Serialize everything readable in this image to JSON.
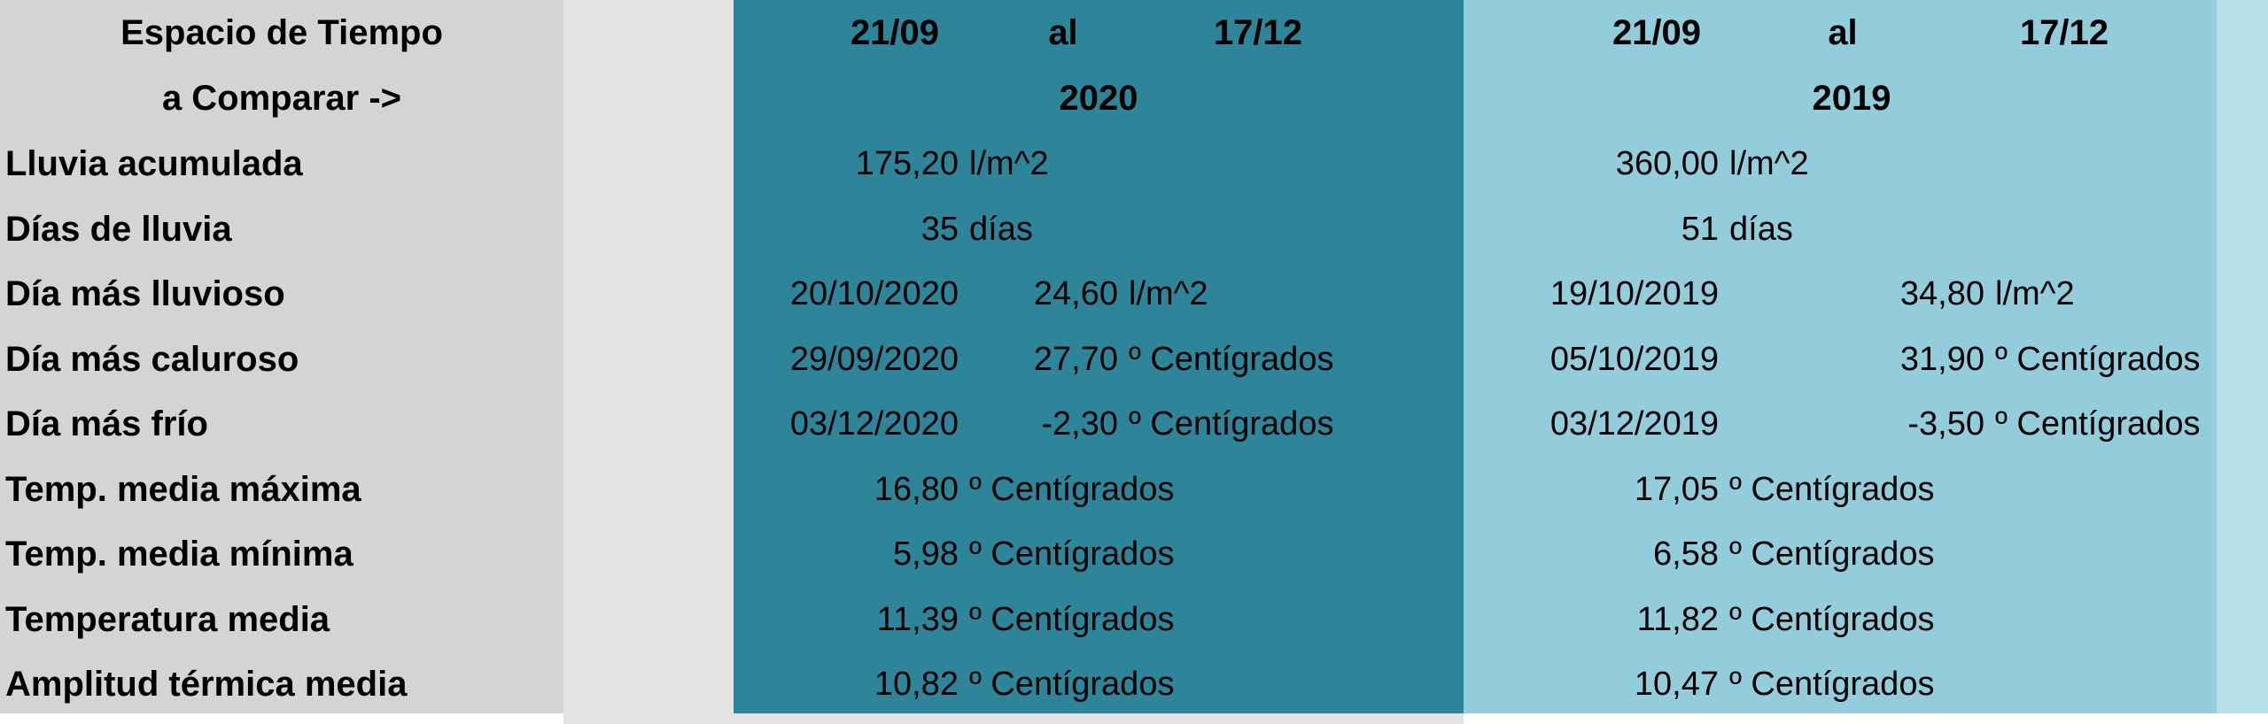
{
  "colors": {
    "label_bg": "#d4d4d4",
    "gap_bg": "#e4e4e4",
    "period1_bg": "#2e8599",
    "period2_bg": "#93cddb",
    "edge_bg": "#b8dee8"
  },
  "header": {
    "label_line1": "Espacio de Tiempo",
    "label_line2": "a Comparar ->",
    "period1": {
      "from": "21/09",
      "sep": "al",
      "to": "17/12",
      "year": "2020"
    },
    "period2": {
      "from": "21/09",
      "sep": "al",
      "to": "17/12",
      "year": "2019"
    }
  },
  "rows": [
    {
      "label": "Lluvia acumulada",
      "p1": {
        "v1": "175,20",
        "u1": "l/m^2"
      },
      "p2": {
        "v1": "360,00",
        "u1": "l/m^2"
      }
    },
    {
      "label": "Días de lluvia",
      "p1": {
        "v1": "35",
        "u1": "días"
      },
      "p2": {
        "v1": "51",
        "u1": "días"
      }
    },
    {
      "label": "Día más lluvioso",
      "p1": {
        "date": "20/10/2020",
        "v2": "24,60",
        "u2": "l/m^2"
      },
      "p2": {
        "date": "19/10/2019",
        "v2": "34,80",
        "u2": "l/m^2"
      }
    },
    {
      "label": "Día más caluroso",
      "p1": {
        "date": "29/09/2020",
        "v2": "27,70",
        "u2": "º Centígrados"
      },
      "p2": {
        "date": "05/10/2019",
        "v2": "31,90",
        "u2": "º Centígrados"
      }
    },
    {
      "label": "Día más frío",
      "p1": {
        "date": "03/12/2020",
        "v2": "-2,30",
        "u2": "º Centígrados"
      },
      "p2": {
        "date": "03/12/2019",
        "v2": "-3,50",
        "u2": "º Centígrados"
      }
    },
    {
      "label": "Temp. media máxima",
      "p1": {
        "v1": "16,80",
        "u1": "º Centígrados"
      },
      "p2": {
        "v1": "17,05",
        "u1": "º Centígrados"
      }
    },
    {
      "label": "Temp. media mínima",
      "p1": {
        "v1": "5,98",
        "u1": "º Centígrados"
      },
      "p2": {
        "v1": "6,58",
        "u1": "º Centígrados"
      }
    },
    {
      "label": "Temperatura media",
      "p1": {
        "v1": "11,39",
        "u1": "º Centígrados"
      },
      "p2": {
        "v1": "11,82",
        "u1": "º Centígrados"
      }
    },
    {
      "label": "Amplitud térmica media",
      "p1": {
        "v1": "10,82",
        "u1": "º Centígrados"
      },
      "p2": {
        "v1": "10,47",
        "u1": "º Centígrados"
      }
    }
  ]
}
